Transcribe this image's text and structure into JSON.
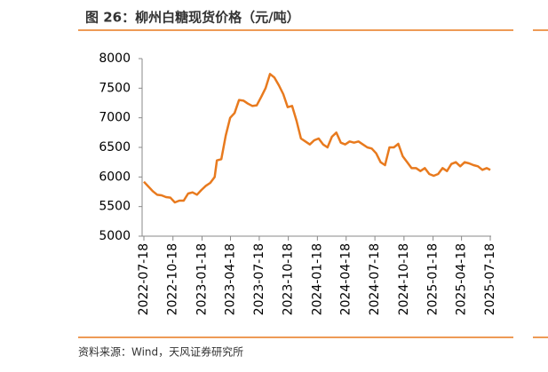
{
  "chart_data": {
    "type": "line",
    "title": "图 26：柳州白糖现货价格（元/吨）",
    "source": "资料来源：Wind，天风证券研究所",
    "color": "#e87a1e",
    "x": [
      "2022-07-18",
      "2022-08-01",
      "2022-08-15",
      "2022-08-29",
      "2022-09-12",
      "2022-09-26",
      "2022-10-10",
      "2022-10-24",
      "2022-11-07",
      "2022-11-21",
      "2022-12-05",
      "2022-12-19",
      "2023-01-02",
      "2023-01-16",
      "2023-01-30",
      "2023-02-13",
      "2023-02-27",
      "2023-03-06",
      "2023-03-20",
      "2023-04-03",
      "2023-04-17",
      "2023-05-01",
      "2023-05-15",
      "2023-05-29",
      "2023-06-12",
      "2023-06-26",
      "2023-07-10",
      "2023-07-24",
      "2023-08-07",
      "2023-08-21",
      "2023-09-04",
      "2023-09-18",
      "2023-10-02",
      "2023-10-16",
      "2023-10-30",
      "2023-11-13",
      "2023-11-27",
      "2023-12-11",
      "2023-12-25",
      "2024-01-08",
      "2024-01-22",
      "2024-02-05",
      "2024-02-19",
      "2024-03-04",
      "2024-03-18",
      "2024-04-01",
      "2024-04-15",
      "2024-04-29",
      "2024-05-13",
      "2024-05-27",
      "2024-06-10",
      "2024-06-24",
      "2024-07-08",
      "2024-07-22",
      "2024-08-05",
      "2024-08-19",
      "2024-09-02",
      "2024-09-16",
      "2024-09-30",
      "2024-10-14",
      "2024-10-28",
      "2024-11-11",
      "2024-11-25",
      "2024-12-09",
      "2024-12-23",
      "2025-01-06",
      "2025-01-20",
      "2025-02-03",
      "2025-02-17",
      "2025-03-03",
      "2025-03-17",
      "2025-03-31",
      "2025-04-14",
      "2025-04-28",
      "2025-05-12",
      "2025-05-26",
      "2025-06-09",
      "2025-06-23",
      "2025-07-07",
      "2025-07-18"
    ],
    "series": [
      {
        "name": "柳州白糖现货价格",
        "color": "#e87a1e",
        "values": [
          5920,
          5840,
          5760,
          5700,
          5690,
          5660,
          5650,
          5570,
          5600,
          5600,
          5720,
          5740,
          5700,
          5780,
          5850,
          5900,
          6000,
          6280,
          6300,
          6700,
          7000,
          7080,
          7300,
          7290,
          7240,
          7200,
          7210,
          7350,
          7500,
          7740,
          7680,
          7550,
          7400,
          7180,
          7200,
          6950,
          6650,
          6600,
          6550,
          6620,
          6650,
          6550,
          6500,
          6680,
          6750,
          6580,
          6550,
          6600,
          6580,
          6600,
          6550,
          6500,
          6480,
          6400,
          6250,
          6200,
          6500,
          6500,
          6560,
          6350,
          6250,
          6150,
          6150,
          6100,
          6150,
          6050,
          6020,
          6050,
          6150,
          6100,
          6220,
          6250,
          6180,
          6250,
          6230,
          6200,
          6180,
          6120,
          6150,
          6120
        ]
      }
    ],
    "xlim": [
      "2022-07-18",
      "2025-07-18"
    ],
    "xticks": [
      "2022-07-18",
      "2022-10-18",
      "2023-01-18",
      "2023-04-18",
      "2023-07-18",
      "2023-10-18",
      "2024-01-18",
      "2024-04-18",
      "2024-07-18",
      "2024-10-18",
      "2025-01-18",
      "2025-04-18",
      "2025-07-18"
    ],
    "ylim": [
      5000,
      8000
    ],
    "yticks": [
      5000,
      5500,
      6000,
      6500,
      7000,
      7500,
      8000
    ]
  }
}
